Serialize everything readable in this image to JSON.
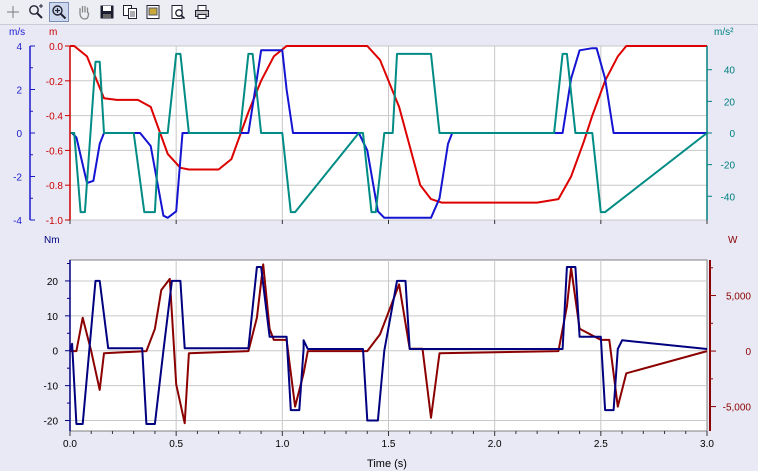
{
  "toolbar": {
    "buttons": [
      {
        "name": "crosshair-icon",
        "glyph": "+"
      },
      {
        "name": "zoom-in-icon",
        "glyph": "⊕"
      },
      {
        "name": "zoom-fit-icon",
        "glyph": "⊕"
      },
      {
        "name": "pan-hand-icon",
        "glyph": "✋"
      },
      {
        "name": "save-icon",
        "glyph": "💾"
      },
      {
        "name": "copy-icon",
        "glyph": "⎘"
      },
      {
        "name": "export-icon",
        "glyph": "▤"
      },
      {
        "name": "print-preview-icon",
        "glyph": "🔍"
      },
      {
        "name": "print-icon",
        "glyph": "🖶"
      }
    ]
  },
  "chart_data": [
    {
      "type": "line",
      "panel": "top",
      "left_axes": [
        {
          "unit": "m/s",
          "color": "#1a1acc",
          "ylim": [
            -4,
            4
          ],
          "ticks": [
            4,
            2,
            0,
            -2,
            -4
          ]
        },
        {
          "unit": "m",
          "color": "#cc0000",
          "ylim": [
            -1.0,
            0.0
          ],
          "ticks": [
            "0.0",
            "-0.2",
            "-0.4",
            "-0.6",
            "-0.8",
            "-1.0"
          ]
        }
      ],
      "right_axis": {
        "unit": "m/s²",
        "color": "#008080",
        "ylim": [
          -55,
          55
        ],
        "ticks": [
          40,
          20,
          0,
          -20,
          -40
        ]
      },
      "xlim": [
        0,
        3.0
      ],
      "grid": true,
      "series": [
        {
          "axis": "m",
          "color": "#dd0000",
          "x": [
            0,
            0.02,
            0.08,
            0.16,
            0.22,
            0.32,
            0.38,
            0.46,
            0.52,
            0.56,
            0.6,
            0.7,
            0.76,
            0.84,
            0.9,
            0.96,
            1.02,
            1.1,
            1.4,
            1.46,
            1.55,
            1.65,
            1.7,
            1.75,
            1.8,
            1.9,
            2.0,
            2.2,
            2.3,
            2.36,
            2.42,
            2.46,
            2.52,
            2.58,
            2.62,
            2.7,
            3.0
          ],
          "y": [
            0,
            0,
            -0.06,
            -0.3,
            -0.31,
            -0.31,
            -0.35,
            -0.62,
            -0.7,
            -0.71,
            -0.71,
            -0.71,
            -0.65,
            -0.38,
            -0.2,
            -0.06,
            0,
            0,
            0,
            -0.08,
            -0.35,
            -0.8,
            -0.88,
            -0.9,
            -0.9,
            -0.9,
            -0.9,
            -0.9,
            -0.88,
            -0.75,
            -0.55,
            -0.4,
            -0.2,
            -0.06,
            0,
            0,
            0
          ]
        },
        {
          "axis": "m/s",
          "color": "#1414d2",
          "x": [
            0,
            0.01,
            0.03,
            0.08,
            0.11,
            0.14,
            0.16,
            0.33,
            0.38,
            0.44,
            0.46,
            0.5,
            0.53,
            0.84,
            0.88,
            0.9,
            0.95,
            1.0,
            1.02,
            1.05,
            1.36,
            1.4,
            1.45,
            1.48,
            1.55,
            1.7,
            1.74,
            1.78,
            1.8,
            2.32,
            2.36,
            2.4,
            2.46,
            2.48,
            2.52,
            2.56,
            3.0
          ],
          "y": [
            0,
            0,
            -0.2,
            -2.3,
            -2.2,
            -0.5,
            0,
            0,
            -0.6,
            -3.8,
            -3.9,
            -3.6,
            0,
            0,
            2.5,
            3.8,
            3.8,
            3.8,
            2,
            0,
            0,
            -0.8,
            -3.6,
            -3.9,
            -3.9,
            -3.9,
            -3,
            -0.5,
            0,
            0,
            2.5,
            3.8,
            3.9,
            3.9,
            2.5,
            0,
            0
          ]
        },
        {
          "axis": "m/s²",
          "color": "#008c84",
          "x": [
            0,
            0.02,
            0.05,
            0.07,
            0.12,
            0.14,
            0.16,
            0.3,
            0.35,
            0.4,
            0.42,
            0.46,
            0.5,
            0.52,
            0.56,
            0.8,
            0.84,
            0.86,
            0.9,
            0.94,
            1.0,
            1.04,
            1.06,
            1.36,
            1.38,
            1.42,
            1.44,
            1.48,
            1.52,
            1.54,
            1.7,
            1.74,
            1.76,
            2.28,
            2.32,
            2.34,
            2.38,
            2.42,
            2.46,
            2.5,
            2.52,
            3.0
          ],
          "y": [
            0,
            0,
            -50,
            -50,
            45,
            45,
            0,
            0,
            -50,
            -50,
            0,
            0,
            50,
            50,
            0,
            0,
            50,
            50,
            0,
            0,
            0,
            -50,
            -50,
            0,
            0,
            -50,
            -50,
            0,
            0,
            50,
            50,
            0,
            0,
            0,
            50,
            50,
            0,
            0,
            0,
            -50,
            -50,
            0
          ]
        }
      ]
    },
    {
      "type": "line",
      "panel": "bottom",
      "left_axis": {
        "unit": "Nm",
        "color": "#000080",
        "ylim": [
          -23,
          26
        ],
        "ticks": [
          20,
          10,
          0,
          -10,
          -20
        ]
      },
      "right_axis": {
        "unit": "W",
        "color": "#8b0000",
        "ylim": [
          -7200,
          8200
        ],
        "ticks": [
          "5,000",
          "0",
          "-5,000"
        ]
      },
      "xlim": [
        0,
        3.0
      ],
      "xlabel": "Time (s)",
      "xticks": [
        "0.0",
        "0.5",
        "1.0",
        "1.5",
        "2.0",
        "2.5",
        "3.0"
      ],
      "grid": true,
      "series": [
        {
          "axis": "Nm",
          "color": "#000080",
          "x": [
            0,
            0.01,
            0.03,
            0.06,
            0.12,
            0.14,
            0.18,
            0.34,
            0.36,
            0.4,
            0.44,
            0.48,
            0.52,
            0.54,
            0.84,
            0.88,
            0.9,
            0.94,
            0.94,
            1.02,
            1.04,
            1.08,
            1.1,
            1.1,
            1.12,
            1.38,
            1.4,
            1.45,
            1.48,
            1.54,
            1.58,
            1.6,
            2.32,
            2.34,
            2.38,
            2.4,
            2.48,
            2.5,
            2.52,
            2.56,
            2.58,
            2.6,
            3.0
          ],
          "y": [
            0,
            2,
            -21,
            -21,
            20,
            20,
            0.7,
            0.7,
            -21,
            -21,
            0,
            20,
            20,
            0.7,
            0.7,
            24,
            24,
            4,
            4,
            4,
            -17,
            -17,
            0.5,
            3,
            0.5,
            0.5,
            -20,
            -20,
            0,
            20,
            20,
            0.5,
            0.5,
            24,
            24,
            4,
            4,
            4,
            -17,
            -17,
            0.5,
            3,
            0.5
          ]
        },
        {
          "axis": "W",
          "color": "#8b0000",
          "x": [
            0,
            0.03,
            0.06,
            0.1,
            0.14,
            0.16,
            0.36,
            0.4,
            0.43,
            0.47,
            0.5,
            0.54,
            0.56,
            0.84,
            0.88,
            0.91,
            0.94,
            0.96,
            1.02,
            1.06,
            1.1,
            1.12,
            1.4,
            1.46,
            1.5,
            1.55,
            1.6,
            1.66,
            1.7,
            1.74,
            2.3,
            2.34,
            2.36,
            2.4,
            2.5,
            2.54,
            2.58,
            2.62,
            3.0
          ],
          "y": [
            0,
            0,
            3000,
            0,
            -3500,
            -200,
            0,
            2000,
            5500,
            6500,
            -3000,
            -6500,
            -200,
            0,
            3000,
            7800,
            2000,
            1000,
            1000,
            -5000,
            -2000,
            0,
            0,
            1500,
            3500,
            6000,
            200,
            200,
            -6000,
            -200,
            0,
            4000,
            7500,
            2000,
            1000,
            1000,
            -5000,
            -2000,
            0
          ]
        }
      ]
    }
  ]
}
